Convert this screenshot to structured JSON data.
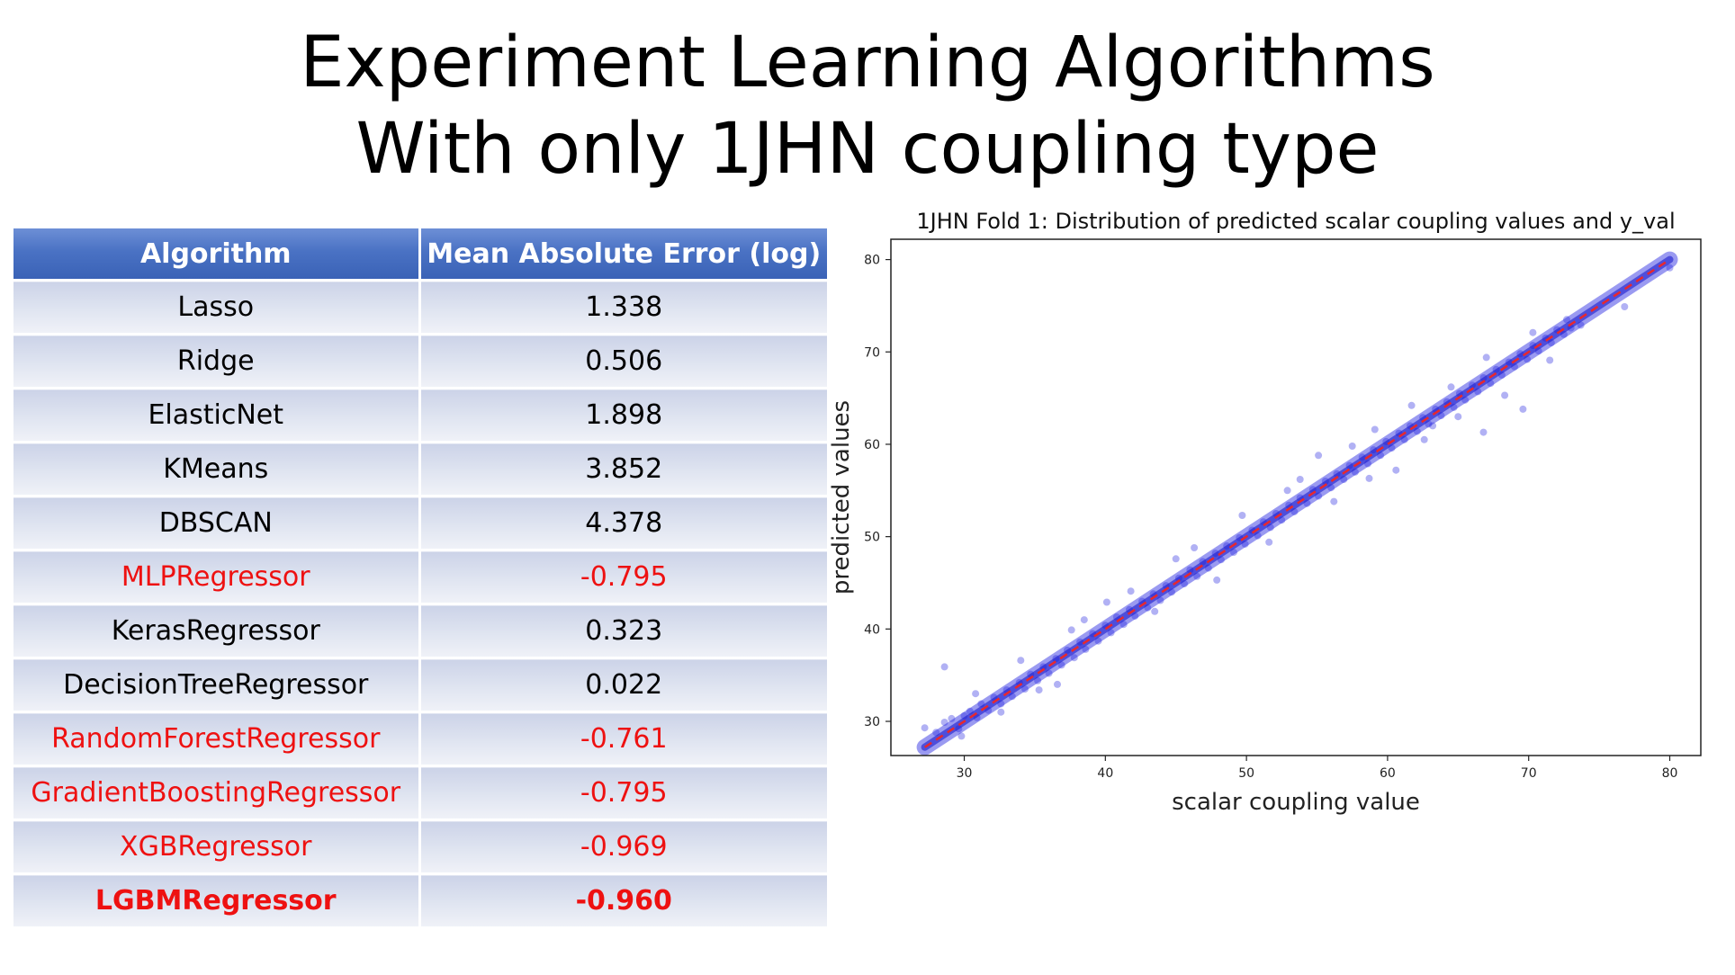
{
  "slide": {
    "title_line1": "Experiment Learning Algorithms",
    "title_line2": "With only 1JHN coupling type"
  },
  "table": {
    "headers": [
      "Algorithm",
      "Mean Absolute Error (log)"
    ],
    "rows": [
      {
        "algorithm": "Lasso",
        "mae": "1.338",
        "style": "normal"
      },
      {
        "algorithm": "Ridge",
        "mae": "0.506",
        "style": "normal"
      },
      {
        "algorithm": "ElasticNet",
        "mae": "1.898",
        "style": "normal"
      },
      {
        "algorithm": "KMeans",
        "mae": "3.852",
        "style": "normal"
      },
      {
        "algorithm": "DBSCAN",
        "mae": "4.378",
        "style": "normal"
      },
      {
        "algorithm": "MLPRegressor",
        "mae": "-0.795",
        "style": "red"
      },
      {
        "algorithm": "KerasRegressor",
        "mae": "0.323",
        "style": "normal"
      },
      {
        "algorithm": "DecisionTreeRegressor",
        "mae": "0.022",
        "style": "normal"
      },
      {
        "algorithm": "RandomForestRegressor",
        "mae": "-0.761",
        "style": "red"
      },
      {
        "algorithm": "GradientBoostingRegressor",
        "mae": "-0.795",
        "style": "red"
      },
      {
        "algorithm": "XGBRegressor",
        "mae": "-0.969",
        "style": "red"
      },
      {
        "algorithm": "LGBMRegressor",
        "mae": "-0.960",
        "style": "red-bold"
      }
    ],
    "colors": {
      "header_bg": "#4a72c4",
      "header_text": "#ffffff",
      "row_bg": "#dfe4f0",
      "highlight_text": "#ee1111"
    }
  },
  "chart_data": {
    "type": "scatter",
    "title": "1JHN Fold 1: Distribution of predicted scalar coupling values and y_val",
    "xlabel": "scalar coupling value",
    "ylabel": "predicted values",
    "xlim": [
      24.8,
      82.2
    ],
    "ylim": [
      26.3,
      82.2
    ],
    "xticks": [
      30,
      40,
      50,
      60,
      70,
      80
    ],
    "yticks": [
      30,
      40,
      50,
      60,
      70,
      80
    ],
    "grid": false,
    "series": [
      {
        "kind": "points",
        "color": "#1f1fe0",
        "alpha": 0.35,
        "points": [
          [
            27.2,
            29.3
          ],
          [
            28.0,
            28.8
          ],
          [
            28.6,
            29.9
          ],
          [
            29.1,
            30.3
          ],
          [
            29.6,
            29.2
          ],
          [
            30.0,
            30.6
          ],
          [
            30.4,
            31.1
          ],
          [
            30.9,
            30.4
          ],
          [
            31.2,
            31.9
          ],
          [
            31.7,
            31.2
          ],
          [
            32.1,
            32.6
          ],
          [
            32.6,
            31.9
          ],
          [
            33.0,
            33.4
          ],
          [
            33.4,
            32.7
          ],
          [
            33.9,
            34.2
          ],
          [
            34.3,
            33.5
          ],
          [
            34.7,
            35.1
          ],
          [
            35.2,
            34.4
          ],
          [
            35.6,
            35.9
          ],
          [
            36.0,
            35.2
          ],
          [
            36.5,
            36.8
          ],
          [
            36.9,
            36.1
          ],
          [
            37.3,
            37.7
          ],
          [
            37.8,
            36.9
          ],
          [
            38.2,
            38.6
          ],
          [
            38.6,
            37.8
          ],
          [
            39.1,
            39.5
          ],
          [
            39.5,
            38.7
          ],
          [
            40.0,
            40.4
          ],
          [
            40.4,
            39.6
          ],
          [
            40.8,
            41.3
          ],
          [
            41.3,
            40.5
          ],
          [
            41.7,
            42.1
          ],
          [
            42.1,
            41.4
          ],
          [
            42.6,
            43.0
          ],
          [
            43.0,
            42.3
          ],
          [
            43.4,
            43.8
          ],
          [
            43.9,
            43.1
          ],
          [
            44.3,
            44.7
          ],
          [
            44.7,
            44.0
          ],
          [
            45.2,
            45.5
          ],
          [
            45.6,
            44.9
          ],
          [
            46.0,
            46.4
          ],
          [
            46.5,
            45.7
          ],
          [
            46.9,
            47.3
          ],
          [
            47.3,
            46.6
          ],
          [
            47.8,
            48.2
          ],
          [
            48.2,
            47.5
          ],
          [
            48.6,
            49.0
          ],
          [
            49.1,
            48.3
          ],
          [
            49.5,
            49.9
          ],
          [
            49.9,
            49.2
          ],
          [
            50.4,
            50.7
          ],
          [
            50.8,
            50.1
          ],
          [
            51.2,
            51.6
          ],
          [
            51.7,
            51.0
          ],
          [
            52.1,
            52.5
          ],
          [
            52.5,
            51.8
          ],
          [
            53.0,
            53.4
          ],
          [
            53.4,
            52.7
          ],
          [
            53.8,
            54.2
          ],
          [
            54.3,
            53.6
          ],
          [
            54.7,
            55.1
          ],
          [
            55.1,
            54.4
          ],
          [
            55.6,
            56.0
          ],
          [
            56.0,
            55.3
          ],
          [
            56.4,
            56.8
          ],
          [
            56.9,
            56.2
          ],
          [
            57.3,
            57.7
          ],
          [
            57.7,
            57.0
          ],
          [
            58.2,
            58.6
          ],
          [
            58.6,
            57.9
          ],
          [
            59.0,
            59.4
          ],
          [
            59.5,
            58.8
          ],
          [
            59.9,
            60.3
          ],
          [
            60.3,
            59.6
          ],
          [
            60.8,
            61.2
          ],
          [
            61.2,
            60.5
          ],
          [
            61.6,
            62.0
          ],
          [
            62.1,
            61.4
          ],
          [
            62.5,
            62.9
          ],
          [
            62.9,
            62.2
          ],
          [
            63.4,
            63.8
          ],
          [
            63.8,
            63.1
          ],
          [
            64.2,
            64.6
          ],
          [
            64.7,
            64.0
          ],
          [
            65.1,
            65.5
          ],
          [
            65.5,
            64.8
          ],
          [
            66.0,
            66.4
          ],
          [
            66.4,
            65.7
          ],
          [
            66.8,
            67.2
          ],
          [
            67.3,
            66.6
          ],
          [
            67.7,
            68.1
          ],
          [
            68.1,
            67.5
          ],
          [
            68.6,
            68.9
          ],
          [
            69.0,
            68.4
          ],
          [
            69.4,
            69.8
          ],
          [
            69.9,
            69.2
          ],
          [
            70.3,
            70.7
          ],
          [
            70.7,
            70.1
          ],
          [
            71.2,
            71.5
          ],
          [
            71.6,
            71.0
          ],
          [
            72.0,
            72.4
          ],
          [
            72.5,
            71.9
          ],
          [
            73.0,
            72.6
          ],
          [
            28.6,
            35.9
          ],
          [
            40.1,
            42.9
          ],
          [
            38.5,
            41.0
          ],
          [
            49.7,
            52.3
          ],
          [
            55.1,
            58.8
          ],
          [
            57.5,
            59.8
          ],
          [
            60.6,
            57.2
          ],
          [
            63.2,
            62.0
          ],
          [
            65.0,
            63.0
          ],
          [
            66.8,
            61.3
          ],
          [
            68.3,
            65.3
          ],
          [
            69.6,
            63.8
          ],
          [
            71.5,
            69.1
          ],
          [
            73.7,
            72.9
          ],
          [
            76.8,
            74.9
          ],
          [
            80.0,
            79.1
          ],
          [
            32.6,
            31.0
          ],
          [
            35.3,
            33.4
          ],
          [
            37.6,
            39.9
          ],
          [
            43.5,
            41.9
          ],
          [
            46.3,
            48.8
          ],
          [
            51.6,
            49.4
          ],
          [
            53.8,
            56.2
          ],
          [
            58.7,
            56.3
          ],
          [
            61.7,
            64.2
          ],
          [
            64.5,
            66.2
          ],
          [
            67.0,
            69.4
          ],
          [
            70.3,
            72.1
          ],
          [
            72.7,
            73.5
          ],
          [
            45.0,
            47.6
          ],
          [
            41.8,
            44.1
          ],
          [
            47.9,
            45.3
          ],
          [
            52.9,
            55.0
          ],
          [
            56.2,
            53.8
          ],
          [
            59.1,
            61.6
          ],
          [
            62.6,
            60.5
          ],
          [
            34.0,
            36.6
          ],
          [
            36.6,
            34.0
          ],
          [
            30.8,
            33.0
          ],
          [
            29.8,
            28.4
          ]
        ]
      },
      {
        "kind": "line",
        "name": "",
        "style": "dashed",
        "color": "#e8282d",
        "x": [
          27.2,
          80.0
        ],
        "y": [
          27.2,
          80.0
        ]
      }
    ]
  }
}
